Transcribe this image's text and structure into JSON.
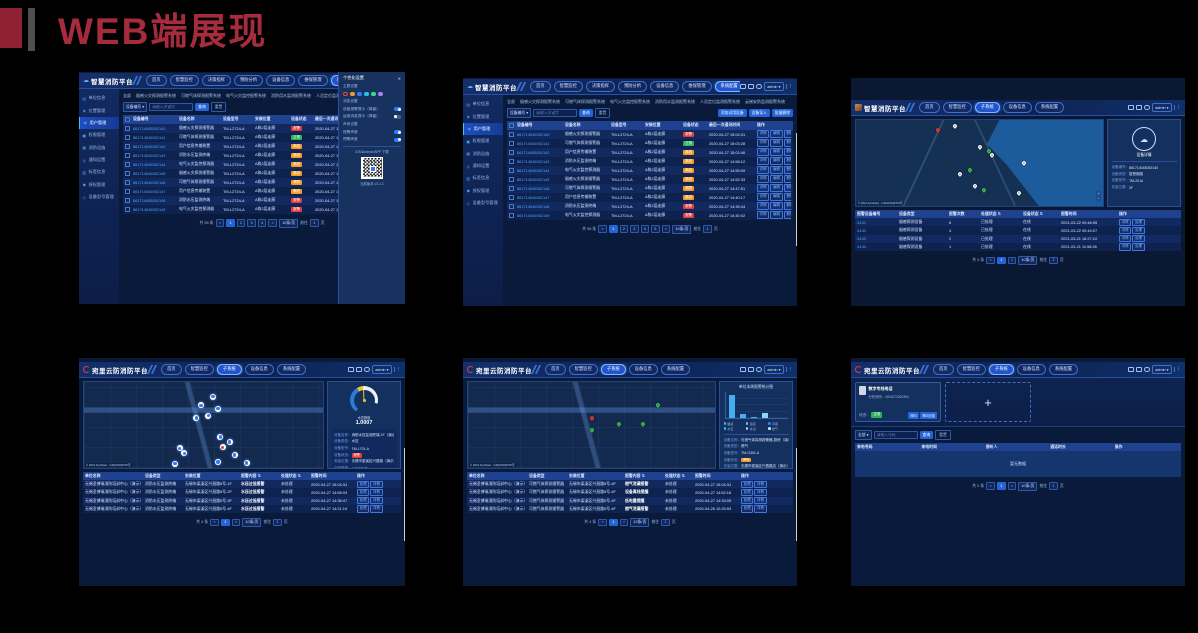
{
  "slide": {
    "title": "WEB端展现"
  },
  "ui": {
    "cloud_icon": "☁",
    "user": "admin ▾",
    "more": "⋮",
    "filter_device": "设备编号 ▾",
    "kw_placeholder": "请输入关键字",
    "search": "查询",
    "reset": "重置",
    "prev": "<",
    "next": ">",
    "size": "10条/页",
    "goto": "前往",
    "goto_val": "1",
    "page_unit": "页",
    "zoom_in": "+",
    "zoom_out": "−",
    "map_attr": "© 2021 AutoNavi - GS(2019)6379号"
  },
  "fire_logo": "智慧消防平台",
  "cloud_logo": "宛里云防消防平台",
  "fire_nav": [
    {
      "label": "首页"
    },
    {
      "label": "智慧监控"
    },
    {
      "label": "决策指挥"
    },
    {
      "label": "预防分析"
    },
    {
      "label": "设备信息"
    },
    {
      "label": "维保管理"
    },
    {
      "label": "系统配置",
      "cls": "active"
    },
    {
      "label": "子系统"
    }
  ],
  "cloud_nav": [
    {
      "label": "首页"
    },
    {
      "label": "智慧监控"
    },
    {
      "label": "子系统",
      "cls": "active"
    },
    {
      "label": "设备信息"
    },
    {
      "label": "系统配置"
    }
  ],
  "fire_sidebar": [
    {
      "icon": "▤",
      "label": "单位信息"
    },
    {
      "icon": "◈",
      "label": "位置管理"
    },
    {
      "icon": "◉",
      "label": "用户管理",
      "cls": "active"
    },
    {
      "icon": "▣",
      "label": "权限管理"
    },
    {
      "icon": "▦",
      "label": "消防设施"
    },
    {
      "icon": "◎",
      "label": "通知设置"
    },
    {
      "icon": "▥",
      "label": "标签信息"
    },
    {
      "icon": "◆",
      "label": "授权管理"
    },
    {
      "icon": "◇",
      "label": "设备型号管理"
    }
  ],
  "fire_tabs": [
    "全部",
    "烟感火灾探测报警系统",
    "可燃气体探测报警系统",
    "电气火灾监控报警系统",
    "消防用水监测报警系统",
    "人员定位监测报警系统",
    "云梯安防监测报警系统"
  ],
  "dev_headers": [
    "设备编号",
    "设备名称",
    "设备型号",
    "安装位置",
    "设备状态",
    "最后一次通讯时间",
    "操作"
  ],
  "ops_dev": [
    "详情",
    "编辑",
    "删除"
  ],
  "device_rows": [
    {
      "id": "861714045052140",
      "name": "烟感火灾探测报警器",
      "model": "TM-L2724-A",
      "pos": "A栋2层走廊",
      "status": "报警",
      "sc": "red",
      "time": "2020-04-27 15:04:31"
    },
    {
      "id": "861714045052141",
      "name": "可燃气体探测报警器",
      "model": "TM-L2724-A",
      "pos": "A栋2层走廊",
      "status": "正常",
      "sc": "green",
      "time": "2020-04-27 15:03:28"
    },
    {
      "id": "861714045052142",
      "name": "用户信息传输装置",
      "model": "TM-L2724-A",
      "pos": "A栋2层走廊",
      "status": "离线",
      "sc": "orange",
      "time": "2020-04-27 15:02:46"
    },
    {
      "id": "861714045052143",
      "name": "消防水压监测终端",
      "model": "TM-L2724-A",
      "pos": "A栋2层走廊",
      "status": "离线",
      "sc": "orange",
      "time": "2020-04-27 14:58:12"
    },
    {
      "id": "861714045052144",
      "name": "电气火灾监控探测器",
      "model": "TM-L2724-A",
      "pos": "A栋2层走廊",
      "status": "离线",
      "sc": "orange",
      "time": "2020-04-27 14:55:09"
    },
    {
      "id": "861714045052145",
      "name": "烟感火灾探测报警器",
      "model": "TM-L2724-A",
      "pos": "A栋2层走廊",
      "status": "离线",
      "sc": "orange",
      "time": "2020-04-27 14:52:33"
    },
    {
      "id": "861714045052146",
      "name": "可燃气体探测报警器",
      "model": "TM-L2724-A",
      "pos": "A栋2层走廊",
      "status": "故障",
      "sc": "orange",
      "time": "2020-04-27 14:47:51"
    },
    {
      "id": "861714045052147",
      "name": "用户信息传输装置",
      "model": "TM-L2724-A",
      "pos": "A栋2层走廊",
      "status": "离线",
      "sc": "orange",
      "time": "2020-04-27 14:40:17"
    },
    {
      "id": "861714045052148",
      "name": "消防水压监测终端",
      "model": "TM-L2724-A",
      "pos": "A栋2层走廊",
      "status": "报警",
      "sc": "red",
      "time": "2020-04-27 14:35:44"
    },
    {
      "id": "861714045052149",
      "name": "电气火灾监控探测器",
      "model": "TM-L2724-A",
      "pos": "A栋2层走廊",
      "status": "报警",
      "sc": "red",
      "time": "2020-04-27 14:30:02"
    }
  ],
  "t1": {
    "pg_total": "共 98 条",
    "pages": [
      {
        "n": "1",
        "cls": "cur"
      },
      {
        "n": "2"
      },
      {
        "n": "3"
      },
      {
        "n": "4"
      }
    ],
    "panel": {
      "title": "个性化设置",
      "close": "✕",
      "sec_theme": "主题设置",
      "dots": [
        {
          "c": "#e8453c",
          "cls": "ring"
        },
        {
          "c": "#f59a23"
        },
        {
          "c": "#2f7bf5"
        },
        {
          "c": "#29c2e8"
        },
        {
          "c": "#3ddc84"
        },
        {
          "c": "#b07cf7"
        }
      ],
      "sec_msg": "消息设置",
      "toggles": [
        {
          "label": "设备报警提示（弹窗）",
          "cls": "on"
        },
        {
          "label": "运维消息提示（弹窗）",
          "cls": "off"
        }
      ],
      "sec_sound": "声音设置",
      "sounds": [
        {
          "label": "报警声音",
          "cls": "on"
        },
        {
          "label": "预警声音",
          "cls": "on"
        }
      ],
      "app": "iOS/Android APP 下载",
      "version": "当前版本 v2.1.1"
    }
  },
  "t2": {
    "toolbar_btns": [
      "添加试用设备",
      "设备导入",
      "批量删除"
    ],
    "pg_total": "共 98 条",
    "pages": [
      {
        "n": "1",
        "cls": "cur"
      },
      {
        "n": "2"
      },
      {
        "n": "3"
      },
      {
        "n": "4"
      },
      {
        "n": "5"
      }
    ]
  },
  "t3": {
    "markers": [
      {
        "x": 33,
        "y": 13,
        "c": "red"
      },
      {
        "x": 40,
        "y": 9,
        "c": "white"
      },
      {
        "x": 50,
        "y": 33,
        "c": "white"
      },
      {
        "x": 55,
        "y": 42,
        "c": "white"
      },
      {
        "x": 68,
        "y": 52,
        "c": "white"
      },
      {
        "x": 42,
        "y": 65,
        "c": "white"
      },
      {
        "x": 48,
        "y": 79,
        "c": "white"
      },
      {
        "x": 66,
        "y": 87,
        "c": "white"
      },
      {
        "x": 54,
        "y": 38,
        "c": "green"
      },
      {
        "x": 46,
        "y": 60,
        "c": "green"
      },
      {
        "x": 52,
        "y": 83,
        "c": "green"
      }
    ],
    "panel": {
      "icon": "☁",
      "label": "设备详情",
      "rows": [
        {
          "k": "设备编号：",
          "v": "861714045052140"
        },
        {
          "k": "设备类型：",
          "v": "智慧烟感"
        },
        {
          "k": "设备型号：",
          "v": "TM-201A"
        },
        {
          "k": "安装位置：",
          "v": "2F"
        }
      ]
    },
    "headers": [
      "报警设备编号",
      "设备类型",
      "报警次数",
      "处理状态 ⇅",
      "设备状态 ⇅",
      "报警时间",
      "操作"
    ],
    "rows": [
      {
        "id": "A101",
        "ty": "烟感探测设备",
        "cnt": "6",
        "deal": "已处理",
        "st": "在线",
        "time": "2021-03-22 09:46:55"
      },
      {
        "id": "A102",
        "ty": "烟感探测设备",
        "cnt": "4",
        "deal": "已处理",
        "st": "在线",
        "time": "2021-03-22 09:44:07"
      },
      {
        "id": "A103",
        "ty": "烟感探测设备",
        "cnt": "2",
        "deal": "已处理",
        "st": "在线",
        "time": "2021-03-21 16:27:10"
      },
      {
        "id": "A104",
        "ty": "烟感探测设备",
        "cnt": "1",
        "deal": "已处理",
        "st": "在线",
        "time": "2021-03-21 11:58:26"
      }
    ],
    "ops": [
      "详情",
      "处理"
    ],
    "pg_total": "共 4 条",
    "pages": [
      {
        "n": "1",
        "cls": "cur"
      }
    ]
  },
  "t4": {
    "markers": [
      {
        "x": 49,
        "y": 27,
        "c": "w"
      },
      {
        "x": 47,
        "y": 42,
        "c": "w"
      },
      {
        "x": 52,
        "y": 39,
        "c": "w"
      },
      {
        "x": 56,
        "y": 31,
        "c": "w"
      },
      {
        "x": 54,
        "y": 17,
        "c": "w"
      },
      {
        "x": 57,
        "y": 64,
        "c": "w"
      },
      {
        "x": 61,
        "y": 70,
        "c": "w"
      },
      {
        "x": 58,
        "y": 76,
        "c": "r"
      },
      {
        "x": 63,
        "y": 85,
        "c": "w"
      },
      {
        "x": 56,
        "y": 93,
        "c": "w"
      },
      {
        "x": 40,
        "y": 77,
        "c": "w"
      },
      {
        "x": 42,
        "y": 83,
        "c": "w"
      },
      {
        "x": 38,
        "y": 95,
        "c": "w"
      },
      {
        "x": 68,
        "y": 94,
        "c": "w"
      }
    ],
    "panel": {
      "gauge_label": "水压数值",
      "gauge_value": "1.0007",
      "info": [
        {
          "k": "设备名称：",
          "v": "消防水压监测终端-1F（演示）"
        },
        {
          "k": "设备类型：",
          "v": "水压"
        },
        {
          "k": "设备型号：",
          "v": "TM-L701-A"
        },
        {
          "k": "设备状态：",
          "v": "",
          "badge": "red",
          "badge_label": "报警"
        },
        {
          "k": "安装位置：",
          "v": "无锡市梁溪区兴昌路（演示）"
        },
        {
          "k": "当前数值：",
          "v": "1.0007MPa"
        }
      ]
    },
    "rows": [
      {
        "u": "无锡圣博瑞消防培训中心（演示）",
        "ty": "消防水压监测终端",
        "pos": "无锡市梁溪区兴昌路5号-1F",
        "con": "水压过低报警",
        "st": "未处理",
        "time": "2020-04-27 15:04:31"
      },
      {
        "u": "无锡圣博瑞消防培训中心（演示）",
        "ty": "消防水压监测终端",
        "pos": "无锡市梁溪区兴昌路5号-2F",
        "con": "水压过低报警",
        "st": "未处理",
        "time": "2020-04-27 14:58:03"
      },
      {
        "u": "无锡圣博瑞消防培训中心（演示）",
        "ty": "消防水压监测终端",
        "pos": "无锡市梁溪区兴昌路5号-3F",
        "con": "水压过低报警",
        "st": "未处理",
        "time": "2020-04-27 14:36:47"
      },
      {
        "u": "无锡圣博瑞消防培训中心（演示）",
        "ty": "消防水压监测终端",
        "pos": "无锡市梁溪区兴昌路5号-4F",
        "con": "水压过低报警",
        "st": "未处理",
        "time": "2020-04-27 14:21:19"
      }
    ],
    "pg_total": "共 4 条",
    "pages": [
      {
        "n": "1",
        "cls": "cur"
      }
    ]
  },
  "t5": {
    "markers": [
      {
        "x": 50,
        "y": 44,
        "c": "red"
      },
      {
        "x": 50,
        "y": 57,
        "c": "green"
      },
      {
        "x": 61,
        "y": 50,
        "c": "green"
      },
      {
        "x": 71,
        "y": 50,
        "c": "green"
      },
      {
        "x": 77,
        "y": 29,
        "c": "green"
      }
    ],
    "panel": {
      "title": "单位本周报警统计图",
      "bars": [
        {
          "v": 88,
          "c": "#45aef0"
        },
        {
          "v": 14,
          "c": "#45aef0"
        },
        {
          "v": 5,
          "c": "#45aef0"
        },
        {
          "v": 20,
          "c": "#8fd4f7"
        }
      ],
      "legend": [
        {
          "label": "烟感",
          "c": "#45aef0"
        },
        {
          "label": "温感",
          "c": "#6fc3f2"
        },
        {
          "label": "手报",
          "c": "#2f7bf5"
        },
        {
          "label": "水压",
          "c": "#29c2e8"
        },
        {
          "label": "水浸",
          "c": "#8fd4f7"
        },
        {
          "label": "燃气",
          "c": "#b7e3fa"
        }
      ],
      "info": [
        {
          "k": "设备名称：",
          "v": "可燃气体探测报警器-厨房（演示）"
        },
        {
          "k": "设备类型：",
          "v": "燃气"
        },
        {
          "k": "设备型号：",
          "v": "TM-G301-A"
        },
        {
          "k": "设备状态：",
          "v": "",
          "badge": "orange",
          "badge_label": "离线"
        },
        {
          "k": "安装位置：",
          "v": "无锡市梁溪区兴昌路店（演示）"
        }
      ]
    },
    "rows": [
      {
        "u": "无锡圣博瑞消防培训中心（演示）",
        "ty": "可燃气体探测报警器",
        "pos": "无锡市梁溪区兴昌路5号-4F",
        "con": "燃气泄漏报警",
        "st": "未处理",
        "time": "2020-04-27 15:04:31"
      },
      {
        "u": "无锡圣博瑞消防培训中心（演示）",
        "ty": "可燃气体探测报警器",
        "pos": "无锡市梁溪区兴昌路5号-4F",
        "con": "设备离线提醒",
        "st": "未处理",
        "time": "2020-04-27 14:52:18"
      },
      {
        "u": "无锡圣博瑞消防培训中心（演示）",
        "ty": "可燃气体探测报警器",
        "pos": "无锡市梁溪区兴昌路5号-4F",
        "con": "低电量提醒",
        "st": "未处理",
        "time": "2020-04-27 14:33:05"
      },
      {
        "u": "无锡圣博瑞消防培训中心（演示）",
        "ty": "可燃气体探测报警器",
        "pos": "无锡市梁溪区兴昌路5号-4F",
        "con": "燃气泄漏报警",
        "st": "未处理",
        "time": "2020-04-26 10:25:53"
      }
    ],
    "pg_total": "共 4 条",
    "pages": [
      {
        "n": "1",
        "cls": "cur"
      }
    ]
  },
  "alarm_headers": [
    "单位名称",
    "设备类型",
    "安装位置",
    "报警内容 ⇅",
    "处理状态 ⇅",
    "报警时间",
    "操作"
  ],
  "ops_alarm": [
    "处理",
    "详情"
  ],
  "t6": {
    "card": {
      "title": "数字专线电话",
      "sub": "分机号码：4001071000354",
      "status_k": "状态：",
      "status_v": "正常",
      "btns": [
        "呼叫",
        "呼叫记录"
      ]
    },
    "add_icon": "+",
    "filter": "全部 ▾",
    "kw_placeholder": "请输入号码",
    "headers": [
      "来电号码",
      "来电时间",
      "接听人",
      "通话时长",
      "操作"
    ],
    "empty": "暂无数据",
    "pg_total": "共 0 条",
    "pages": [
      {
        "n": "1",
        "cls": "cur"
      }
    ]
  }
}
